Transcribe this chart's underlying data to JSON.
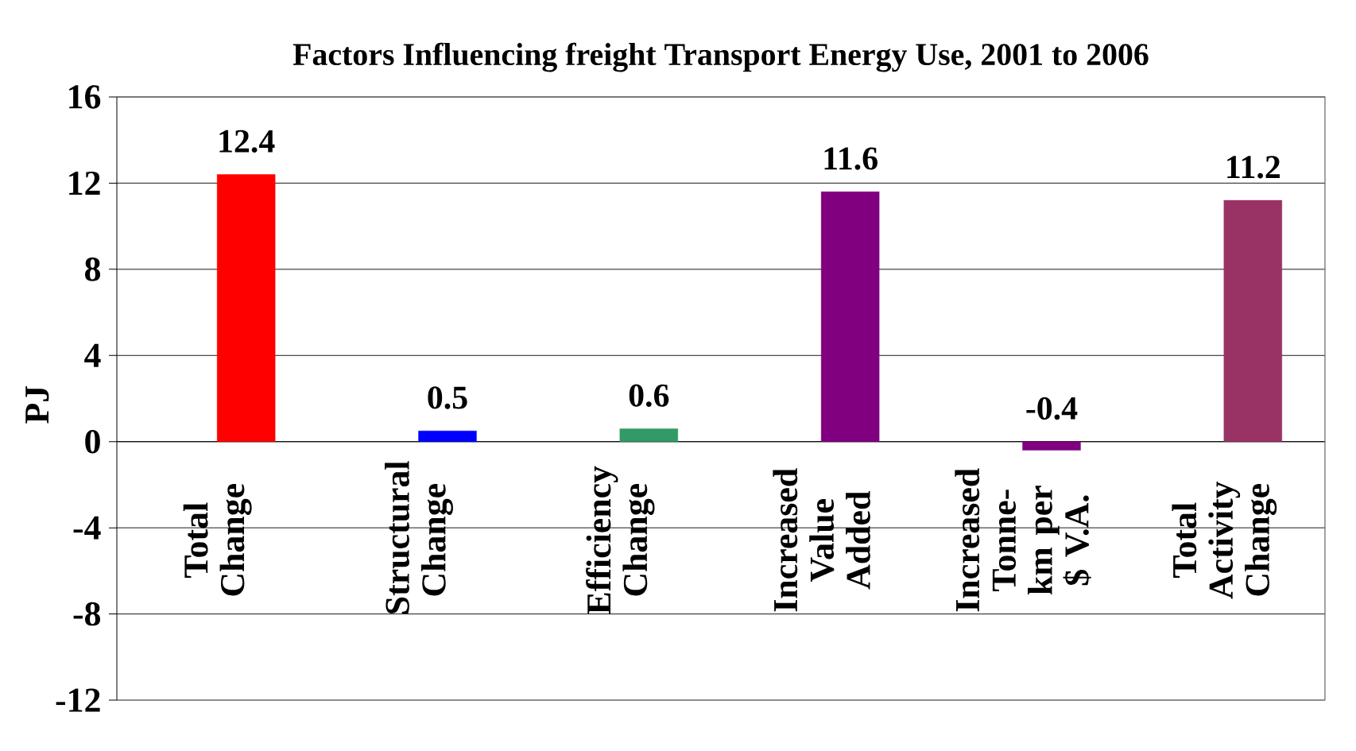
{
  "chart_data": {
    "type": "bar",
    "title": "Factors Influencing freight Transport Energy Use, 2001 to 2006",
    "ylabel": "PJ",
    "categories": [
      "Total Change",
      "Structural Change",
      "Efficiency Change",
      "Increased Value Added",
      "Increased Tonne-km per $ V.A.",
      "Total Activity Change"
    ],
    "values": [
      12.4,
      0.5,
      0.6,
      11.6,
      -0.4,
      11.2
    ],
    "colors": [
      "#ff0000",
      "#0000ff",
      "#339966",
      "#800080",
      "#800080",
      "#993366"
    ],
    "value_labels": [
      "12.4",
      "0.5",
      "0.6",
      "11.6",
      "-0.4",
      "11.2"
    ],
    "ylim": [
      -12,
      16
    ],
    "yticks": [
      -12,
      -8,
      -4,
      0,
      4,
      8,
      12,
      16
    ],
    "grid": "y"
  }
}
